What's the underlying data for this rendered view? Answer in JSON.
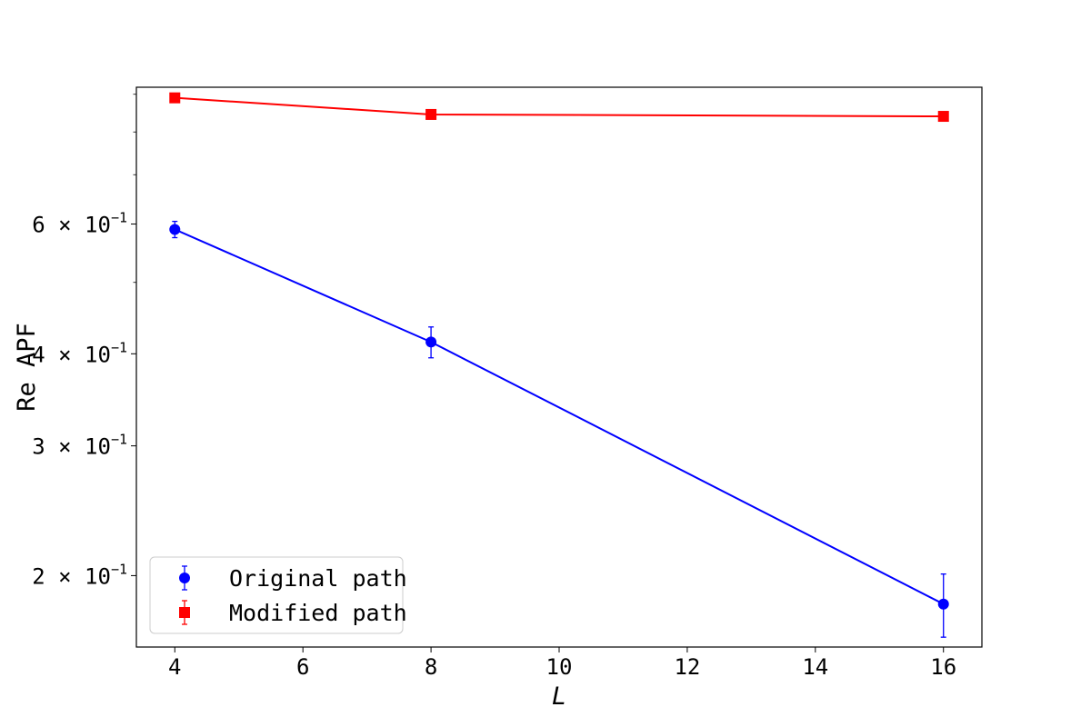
{
  "chart_data": {
    "type": "line",
    "title": "",
    "xlabel": "L",
    "ylabel": "Re APF",
    "x": [
      4,
      8,
      16
    ],
    "xlim": [
      3.4,
      16.6
    ],
    "xticks": [
      4,
      6,
      8,
      10,
      12,
      14,
      16
    ],
    "ylim": [
      0.16,
      0.92
    ],
    "yscale": "log",
    "yticks": [
      {
        "value": 0.2,
        "mantissa": "2",
        "exponent": "−1"
      },
      {
        "value": 0.3,
        "mantissa": "3",
        "exponent": "−1"
      },
      {
        "value": 0.4,
        "mantissa": "4",
        "exponent": "−1"
      },
      {
        "value": 0.6,
        "mantissa": "6",
        "exponent": "−1"
      }
    ],
    "yminor_ticks": [
      0.5,
      0.7,
      0.8,
      0.9
    ],
    "tick_label_times": "×",
    "tick_label_base": "10",
    "grid": false,
    "legend_position": "lower-left",
    "series": [
      {
        "name": "Original path",
        "color": "#0000ff",
        "marker": "circle",
        "values": [
          0.59,
          0.415,
          0.183
        ],
        "errors": [
          0.015,
          0.02,
          0.018
        ]
      },
      {
        "name": "Modified path",
        "color": "#ff0000",
        "marker": "square",
        "values": [
          0.89,
          0.845,
          0.84
        ],
        "errors": [
          0.004,
          0.004,
          0.004
        ]
      }
    ]
  }
}
